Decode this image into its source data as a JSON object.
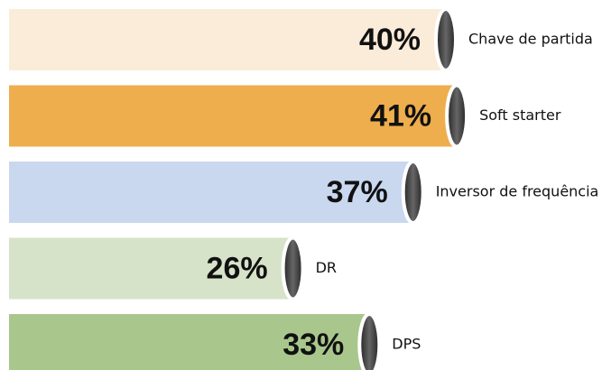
{
  "chart_data": {
    "type": "bar",
    "orientation": "horizontal",
    "categories": [
      "Chave de partida",
      "Soft starter",
      "Inversor de frequência",
      "DR",
      "DPS"
    ],
    "values": [
      40,
      41,
      37,
      26,
      33
    ],
    "value_labels": [
      "40%",
      "41%",
      "37%",
      "26%",
      "33%"
    ],
    "colors": [
      "#fbecd9",
      "#eeae4d",
      "#c9d7ef",
      "#d6e3c9",
      "#a9c78d"
    ]
  }
}
